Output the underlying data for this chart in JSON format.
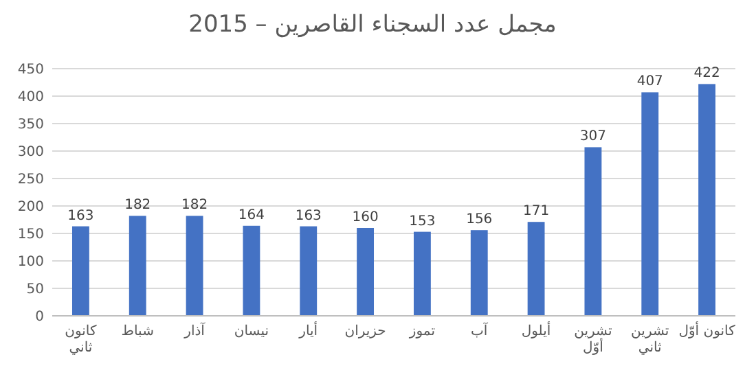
{
  "chart_data": {
    "type": "bar",
    "title": "مجمل عدد السجناء القاصرين – 2015",
    "categories": [
      "كانون ثاني",
      "شباط",
      "آذار",
      "نيسان",
      "أيار",
      "حزيران",
      "تموز",
      "آب",
      "أيلول",
      "تشرين أوّل",
      "تشرين ثاني",
      "كانون أوّل"
    ],
    "values": [
      163,
      182,
      182,
      164,
      163,
      160,
      153,
      156,
      171,
      307,
      407,
      422
    ],
    "color": "#4472c4",
    "ylim": [
      0,
      450
    ],
    "yticks": [
      0,
      50,
      100,
      150,
      200,
      250,
      300,
      350,
      400,
      450
    ],
    "grid": "y",
    "data_labels": true
  }
}
